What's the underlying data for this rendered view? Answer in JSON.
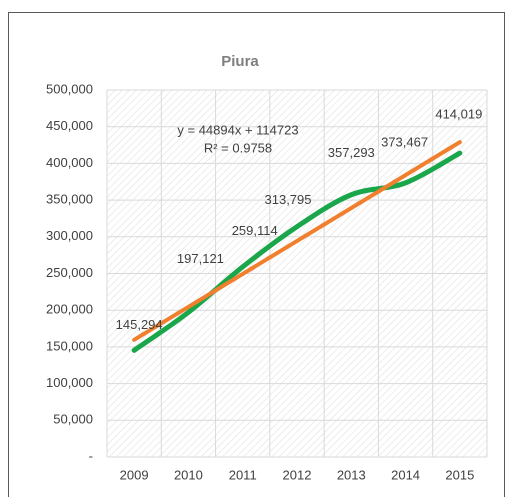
{
  "chart_data": {
    "type": "line",
    "title": "Piura",
    "categories": [
      "2009",
      "2010",
      "2011",
      "2012",
      "2013",
      "2014",
      "2015"
    ],
    "series": [
      {
        "name": "Piura",
        "color": "#1aa64a",
        "values": [
          145294,
          197121,
          259114,
          313795,
          357293,
          373467,
          414019
        ],
        "value_labels": [
          "145,294",
          "197,121",
          "259,114",
          "313,795",
          "357,293",
          "373,467",
          "414,019"
        ]
      }
    ],
    "trendline": {
      "slope": 44894,
      "intercept": 114723,
      "color": "#f07f2e"
    },
    "annotations": [
      "y = 44894x + 114723",
      "R² = 0.9758"
    ],
    "ylim": [
      0,
      500000
    ],
    "yticks": [
      {
        "value": 0,
        "label": "-"
      },
      {
        "value": 50000,
        "label": "50,000"
      },
      {
        "value": 100000,
        "label": "100,000"
      },
      {
        "value": 150000,
        "label": "150,000"
      },
      {
        "value": 200000,
        "label": "200,000"
      },
      {
        "value": 250000,
        "label": "250,000"
      },
      {
        "value": 300000,
        "label": "300,000"
      },
      {
        "value": 350000,
        "label": "350,000"
      },
      {
        "value": 400000,
        "label": "400,000"
      },
      {
        "value": 450000,
        "label": "450,000"
      },
      {
        "value": 500000,
        "label": "500,000"
      }
    ],
    "grid": true
  }
}
